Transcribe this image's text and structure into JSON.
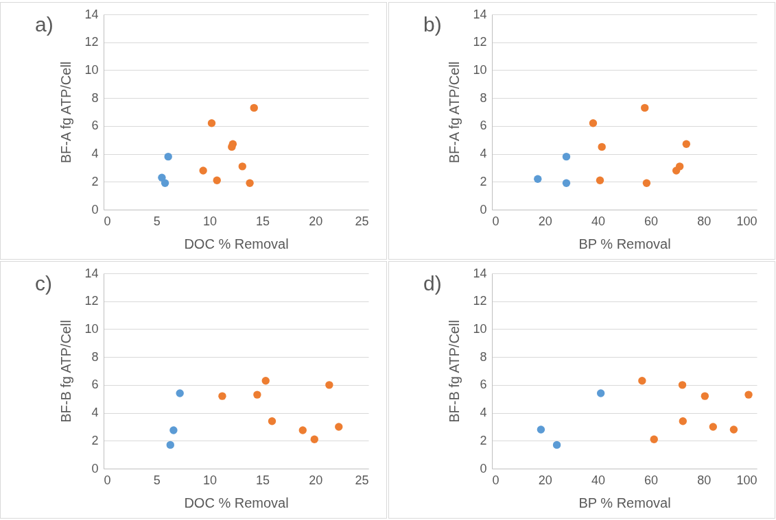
{
  "chart_data": [
    {
      "type": "scatter",
      "title": "a)",
      "xlabel": "DOC % Removal",
      "ylabel": "BF-A fg ATP/Cell",
      "xlim": [
        0,
        25
      ],
      "xticks": [
        0,
        5,
        10,
        15,
        20,
        25
      ],
      "ylim": [
        0,
        14
      ],
      "yticks": [
        0,
        2,
        4,
        6,
        8,
        10,
        12,
        14
      ],
      "grid": "y",
      "marker": "circle",
      "series": [
        {
          "color": "#5b9bd5",
          "x": [
            5.5,
            5.8,
            6.1
          ],
          "values": [
            2.3,
            1.9,
            3.8
          ]
        },
        {
          "color": "#ed7d31",
          "x": [
            10.2,
            14.2,
            12.2,
            12.1,
            13.1,
            9.4,
            10.7,
            13.8
          ],
          "values": [
            6.2,
            7.3,
            4.7,
            4.5,
            3.1,
            2.8,
            2.1,
            1.9
          ]
        }
      ]
    },
    {
      "type": "scatter",
      "title": "b)",
      "xlabel": "BP % Removal",
      "ylabel": "BF-A fg ATP/Cell",
      "xlim": [
        0,
        100
      ],
      "xticks": [
        0,
        20,
        40,
        60,
        80,
        100
      ],
      "ylim": [
        0,
        14
      ],
      "yticks": [
        0,
        2,
        4,
        6,
        8,
        10,
        12,
        14
      ],
      "grid": "y",
      "marker": "circle",
      "series": [
        {
          "color": "#5b9bd5",
          "x": [
            17.3,
            28.1,
            28.1
          ],
          "values": [
            2.2,
            3.8,
            1.9
          ]
        },
        {
          "color": "#ed7d31",
          "x": [
            38.2,
            57.7,
            41.5,
            73.4,
            70.9,
            69.6,
            40.8,
            58.4
          ],
          "values": [
            6.2,
            7.3,
            4.5,
            4.7,
            3.1,
            2.8,
            2.1,
            1.9
          ]
        }
      ]
    },
    {
      "type": "scatter",
      "title": "c)",
      "xlabel": "DOC % Removal",
      "ylabel": "BF-B fg ATP/Cell",
      "xlim": [
        0,
        25
      ],
      "xticks": [
        0,
        5,
        10,
        15,
        20,
        25
      ],
      "ylim": [
        0,
        14
      ],
      "yticks": [
        0,
        2,
        4,
        6,
        8,
        10,
        12,
        14
      ],
      "grid": "y",
      "marker": "circle",
      "series": [
        {
          "color": "#5b9bd5",
          "x": [
            7.2,
            6.6,
            6.3
          ],
          "values": [
            5.4,
            2.75,
            1.7
          ]
        },
        {
          "color": "#ed7d31",
          "x": [
            11.2,
            14.5,
            15.3,
            21.3,
            15.9,
            18.8,
            19.9,
            22.2
          ],
          "values": [
            5.2,
            5.3,
            6.3,
            6.0,
            3.4,
            2.75,
            2.1,
            3.0
          ]
        }
      ]
    },
    {
      "type": "scatter",
      "title": "d)",
      "xlabel": "BP % Removal",
      "ylabel": "BF-B fg ATP/Cell",
      "xlim": [
        0,
        100
      ],
      "xticks": [
        0,
        20,
        40,
        60,
        80,
        100
      ],
      "ylim": [
        0,
        14
      ],
      "yticks": [
        0,
        2,
        4,
        6,
        8,
        10,
        12,
        14
      ],
      "grid": "y",
      "marker": "circle",
      "series": [
        {
          "color": "#5b9bd5",
          "x": [
            18.5,
            24.5,
            41.1
          ],
          "values": [
            2.8,
            1.7,
            5.4
          ]
        },
        {
          "color": "#ed7d31",
          "x": [
            56.7,
            71.9,
            80.4,
            96.9,
            72.1,
            83.5,
            91.3,
            61.2
          ],
          "values": [
            6.3,
            6.0,
            5.2,
            5.3,
            3.4,
            3.0,
            2.8,
            2.1
          ]
        }
      ]
    }
  ]
}
